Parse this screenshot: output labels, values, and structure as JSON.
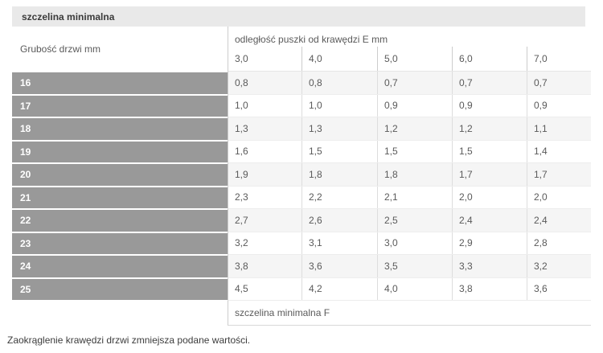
{
  "page": {
    "title_bar": "szczelina minimalna",
    "note": "Zaokrąglenie krawędzi drzwi zmniejsza podane wartości."
  },
  "table": {
    "row_axis_label": "Grubość drzwi mm",
    "col_axis_label": "odległość puszki od krawędzi E mm",
    "footer_label": "szczelina minimalna F",
    "columns": [
      "3,0",
      "4,0",
      "5,0",
      "6,0",
      "7,0"
    ],
    "rows": [
      {
        "label": "16",
        "values": [
          "0,8",
          "0,8",
          "0,7",
          "0,7",
          "0,7"
        ]
      },
      {
        "label": "17",
        "values": [
          "1,0",
          "1,0",
          "0,9",
          "0,9",
          "0,9"
        ]
      },
      {
        "label": "18",
        "values": [
          "1,3",
          "1,3",
          "1,2",
          "1,2",
          "1,1"
        ]
      },
      {
        "label": "19",
        "values": [
          "1,6",
          "1,5",
          "1,5",
          "1,5",
          "1,4"
        ]
      },
      {
        "label": "20",
        "values": [
          "1,9",
          "1,8",
          "1,8",
          "1,7",
          "1,7"
        ]
      },
      {
        "label": "21",
        "values": [
          "2,3",
          "2,2",
          "2,1",
          "2,0",
          "2,0"
        ]
      },
      {
        "label": "22",
        "values": [
          "2,7",
          "2,6",
          "2,5",
          "2,4",
          "2,4"
        ]
      },
      {
        "label": "23",
        "values": [
          "3,2",
          "3,1",
          "3,0",
          "2,9",
          "2,8"
        ]
      },
      {
        "label": "24",
        "values": [
          "3,8",
          "3,6",
          "3,5",
          "3,3",
          "3,2"
        ]
      },
      {
        "label": "25",
        "values": [
          "4,5",
          "4,2",
          "4,0",
          "3,8",
          "3,6"
        ]
      }
    ]
  },
  "colors": {
    "title_bar_bg": "#e9e9e9",
    "row_header_bg": "#999999",
    "row_header_text": "#ffffff",
    "stripe_bg": "#f5f5f5",
    "border_main": "#cccccc",
    "border_light": "#dddddd",
    "text_primary": "#3a3a3a",
    "text_secondary": "#5a5a5a"
  }
}
